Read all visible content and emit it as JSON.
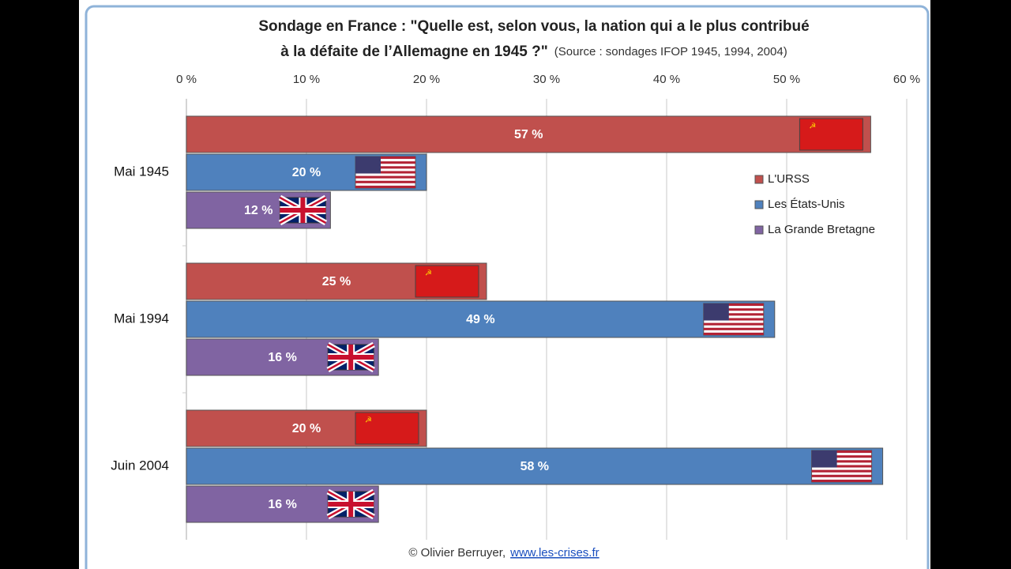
{
  "chart_data": {
    "type": "bar",
    "orientation": "horizontal",
    "title": [
      "Sondage en France : \"Quelle est, selon vous, la nation qui a le plus contribué",
      "à la défaite de l’Allemagne en 1945 ?\""
    ],
    "subtitle": "(Source : sondages IFOP 1945, 1994, 2004)",
    "annotations": [
      "© Olivier Berruyer,",
      "www.les-crises.fr"
    ],
    "categories": [
      "Mai 1945",
      "Mai 1994",
      "Juin 2004"
    ],
    "series": [
      {
        "name": "L'URSS",
        "color": "#c0504d",
        "values": [
          57,
          25,
          20
        ],
        "value_labels": [
          "57 %",
          "25 %",
          "20 %"
        ]
      },
      {
        "name": "Les États-Unis",
        "color": "#4f81bd",
        "values": [
          20,
          49,
          58
        ],
        "value_labels": [
          "20 %",
          "49 %",
          "58 %"
        ]
      },
      {
        "name": "La Grande Bretagne",
        "color": "#8064a2",
        "values": [
          12,
          16,
          16
        ],
        "value_labels": [
          "12 %",
          "16 %",
          "16 %"
        ]
      }
    ],
    "xlim": [
      0,
      60
    ],
    "xticks": [
      {
        "value": 0,
        "label": "0 %"
      },
      {
        "value": 10,
        "label": "10 %"
      },
      {
        "value": 20,
        "label": "20 %"
      },
      {
        "value": 30,
        "label": "30 %"
      },
      {
        "value": 40,
        "label": "40 %"
      },
      {
        "value": 50,
        "label": "50 %"
      },
      {
        "value": 60,
        "label": "60 %"
      }
    ],
    "grid": true,
    "legend": "right"
  }
}
